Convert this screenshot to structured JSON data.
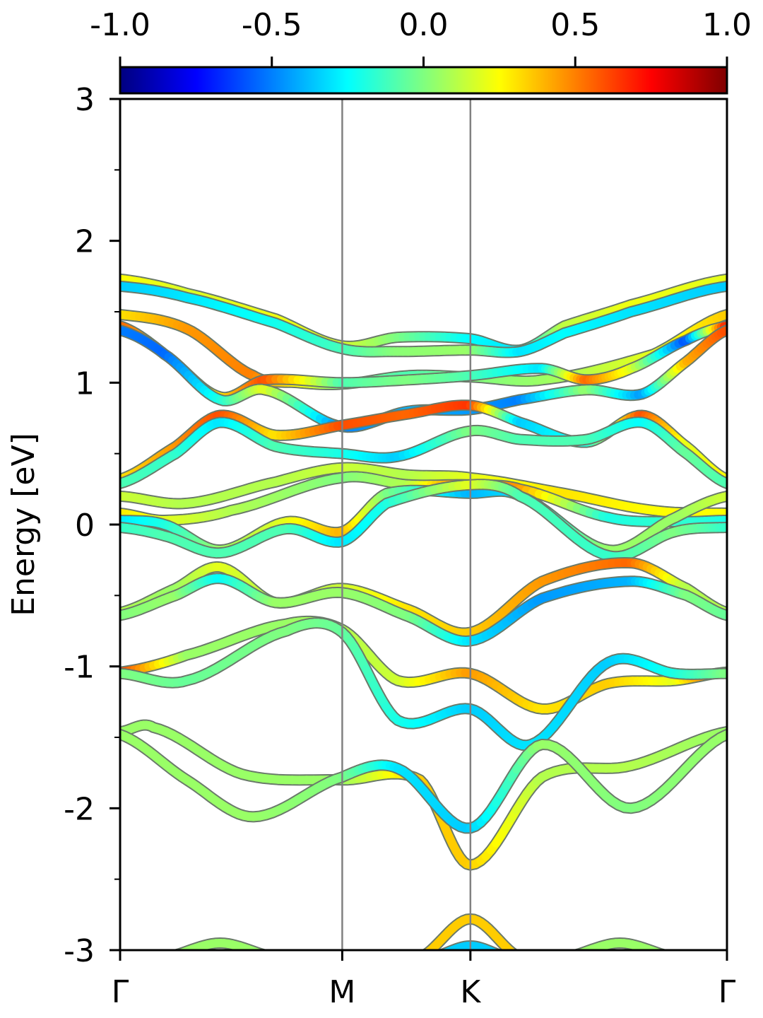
{
  "chart_data": {
    "type": "line",
    "title": "",
    "xlabel": "",
    "ylabel": "Energy [eV]",
    "ylim": [
      -3,
      3
    ],
    "y_ticks": [
      {
        "value": 3,
        "label": "3"
      },
      {
        "value": 2,
        "label": "2"
      },
      {
        "value": 1,
        "label": "1"
      },
      {
        "value": 0,
        "label": "0"
      },
      {
        "value": -1,
        "label": "-1"
      },
      {
        "value": -2,
        "label": "-2"
      },
      {
        "value": -3,
        "label": "-3"
      }
    ],
    "y_minor_ticks": [
      2.5,
      1.5,
      0.5,
      -0.5,
      -1.5,
      -2.5
    ],
    "x_ticks": [
      {
        "position": 0.0,
        "label": "Γ"
      },
      {
        "position": 1.0,
        "label": "M"
      },
      {
        "position": 1.577,
        "label": "K"
      },
      {
        "position": 2.732,
        "label": "Γ"
      }
    ],
    "xlim": [
      0,
      2.732
    ],
    "grid": false,
    "colorbar": {
      "colormap": "jet",
      "range": [
        -1.0,
        1.0
      ],
      "ticks": [
        {
          "value": -1.0,
          "label": "-1.0"
        },
        {
          "value": -0.5,
          "label": "-0.5"
        },
        {
          "value": 0.0,
          "label": "0.0"
        },
        {
          "value": 0.5,
          "label": "0.5"
        },
        {
          "value": 1.0,
          "label": "1.0"
        }
      ],
      "placement": "top"
    },
    "colors": {
      "vline": "#808080",
      "band_outline": "#6a7a6a",
      "axis": "#000000"
    },
    "bands": [
      {
        "points": [
          [
            0,
            1.73,
            0.25
          ],
          [
            0.3,
            1.63,
            0.18
          ],
          [
            0.7,
            1.45,
            0.22
          ],
          [
            1.0,
            1.26,
            0.18
          ],
          [
            1.25,
            1.32,
            0.0
          ],
          [
            1.577,
            1.31,
            -0.25
          ],
          [
            1.8,
            1.23,
            -0.3
          ],
          [
            2.0,
            1.4,
            0.12
          ],
          [
            2.3,
            1.55,
            0.22
          ],
          [
            2.732,
            1.73,
            0.2
          ]
        ]
      },
      {
        "points": [
          [
            0,
            1.68,
            -0.35
          ],
          [
            0.3,
            1.6,
            -0.3
          ],
          [
            0.7,
            1.42,
            -0.22
          ],
          [
            1.0,
            1.24,
            -0.12
          ],
          [
            1.25,
            1.22,
            0.02
          ],
          [
            1.577,
            1.23,
            0.05
          ],
          [
            1.8,
            1.22,
            -0.3
          ],
          [
            2.0,
            1.35,
            -0.25
          ],
          [
            2.3,
            1.5,
            -0.3
          ],
          [
            2.732,
            1.68,
            -0.35
          ]
        ]
      },
      {
        "points": [
          [
            0,
            1.48,
            0.3
          ],
          [
            0.3,
            1.38,
            0.45
          ],
          [
            0.6,
            1.05,
            0.5
          ],
          [
            0.8,
            1.0,
            0.25
          ],
          [
            1.0,
            0.99,
            0.0
          ],
          [
            1.3,
            1.05,
            -0.1
          ],
          [
            1.577,
            1.04,
            0.0
          ],
          [
            1.9,
            1.02,
            0.05
          ],
          [
            2.4,
            1.2,
            0.2
          ],
          [
            2.732,
            1.48,
            0.35
          ]
        ]
      },
      {
        "points": [
          [
            0,
            1.4,
            0.55
          ],
          [
            0.2,
            1.2,
            0.35
          ],
          [
            0.45,
            0.9,
            0.3
          ],
          [
            0.65,
            1.02,
            0.6
          ],
          [
            1.0,
            1.0,
            -0.1
          ],
          [
            1.3,
            1.02,
            0.0
          ],
          [
            1.577,
            1.05,
            -0.1
          ],
          [
            1.9,
            1.1,
            -0.3
          ],
          [
            2.1,
            1.02,
            0.55
          ],
          [
            2.3,
            1.1,
            0.2
          ],
          [
            2.55,
            1.3,
            -0.6
          ],
          [
            2.732,
            1.4,
            0.7
          ]
        ]
      },
      {
        "points": [
          [
            0,
            1.37,
            -0.5
          ],
          [
            0.2,
            1.2,
            -0.55
          ],
          [
            0.45,
            0.88,
            -0.2
          ],
          [
            0.65,
            0.95,
            0.2
          ],
          [
            1.0,
            0.69,
            -0.5
          ],
          [
            1.3,
            0.8,
            -0.4
          ],
          [
            1.577,
            0.81,
            -0.45
          ],
          [
            1.8,
            0.88,
            -0.5
          ],
          [
            2.1,
            0.95,
            0.05
          ],
          [
            2.35,
            0.92,
            -0.45
          ],
          [
            2.55,
            1.15,
            0.4
          ],
          [
            2.732,
            1.37,
            0.6
          ]
        ]
      },
      {
        "points": [
          [
            0,
            0.32,
            0.3
          ],
          [
            0.25,
            0.55,
            0.45
          ],
          [
            0.45,
            0.77,
            0.6
          ],
          [
            0.7,
            0.63,
            0.3
          ],
          [
            1.0,
            0.7,
            0.6
          ],
          [
            1.3,
            0.78,
            0.55
          ],
          [
            1.577,
            0.84,
            0.65
          ],
          [
            1.8,
            0.72,
            -0.35
          ],
          [
            2.1,
            0.58,
            -0.2
          ],
          [
            2.35,
            0.77,
            0.6
          ],
          [
            2.55,
            0.55,
            0.2
          ],
          [
            2.732,
            0.32,
            0.25
          ]
        ]
      },
      {
        "points": [
          [
            0,
            0.29,
            -0.1
          ],
          [
            0.25,
            0.5,
            -0.15
          ],
          [
            0.45,
            0.72,
            -0.3
          ],
          [
            0.7,
            0.55,
            -0.1
          ],
          [
            1.0,
            0.5,
            -0.2
          ],
          [
            1.25,
            0.48,
            -0.35
          ],
          [
            1.577,
            0.66,
            0.0
          ],
          [
            1.8,
            0.6,
            -0.1
          ],
          [
            2.1,
            0.6,
            -0.1
          ],
          [
            2.35,
            0.72,
            -0.25
          ],
          [
            2.55,
            0.5,
            -0.05
          ],
          [
            2.732,
            0.29,
            -0.1
          ]
        ]
      },
      {
        "points": [
          [
            0,
            0.2,
            0.15
          ],
          [
            0.3,
            0.15,
            0.1
          ],
          [
            0.7,
            0.3,
            0.1
          ],
          [
            1.0,
            0.4,
            0.15
          ],
          [
            1.3,
            0.35,
            0.1
          ],
          [
            1.577,
            0.33,
            0.2
          ],
          [
            2.0,
            0.22,
            0.3
          ],
          [
            2.4,
            0.1,
            0.25
          ],
          [
            2.732,
            0.08,
            0.25
          ]
        ]
      },
      {
        "points": [
          [
            0,
            0.08,
            0.3
          ],
          [
            0.2,
            0.03,
            0.2
          ],
          [
            0.5,
            0.1,
            0.1
          ],
          [
            1.0,
            0.33,
            0.0
          ],
          [
            1.3,
            0.28,
            0.1
          ],
          [
            1.577,
            0.28,
            0.6
          ],
          [
            1.8,
            0.25,
            0.45
          ],
          [
            2.2,
            0.05,
            -0.2
          ],
          [
            2.5,
            0.02,
            -0.15
          ],
          [
            2.732,
            0.03,
            -0.2
          ]
        ]
      },
      {
        "points": [
          [
            0,
            0.03,
            -0.3
          ],
          [
            0.2,
            0.0,
            -0.2
          ],
          [
            0.45,
            -0.18,
            0.05
          ],
          [
            0.75,
            0.02,
            0.2
          ],
          [
            1.0,
            -0.05,
            0.4
          ],
          [
            1.2,
            0.22,
            0.0
          ],
          [
            1.577,
            0.22,
            -0.4
          ],
          [
            1.8,
            0.2,
            -0.3
          ],
          [
            2.2,
            -0.18,
            0.05
          ],
          [
            2.5,
            0.05,
            0.05
          ],
          [
            2.732,
            0.2,
            0.15
          ]
        ]
      },
      {
        "points": [
          [
            0,
            -0.02,
            -0.15
          ],
          [
            0.2,
            -0.08,
            -0.1
          ],
          [
            0.45,
            -0.2,
            -0.1
          ],
          [
            0.75,
            -0.03,
            -0.1
          ],
          [
            1.0,
            -0.12,
            -0.3
          ],
          [
            1.2,
            0.15,
            -0.2
          ],
          [
            1.577,
            0.28,
            0.2
          ],
          [
            1.8,
            0.2,
            -0.1
          ],
          [
            2.2,
            -0.22,
            -0.15
          ],
          [
            2.5,
            -0.05,
            0.0
          ],
          [
            2.732,
            -0.02,
            -0.15
          ]
        ]
      },
      {
        "points": [
          [
            0,
            -0.62,
            0.1
          ],
          [
            0.25,
            -0.45,
            0.05
          ],
          [
            0.45,
            -0.3,
            0.2
          ],
          [
            0.7,
            -0.55,
            0.1
          ],
          [
            1.0,
            -0.45,
            0.15
          ],
          [
            1.3,
            -0.6,
            0.3
          ],
          [
            1.577,
            -0.76,
            0.35
          ],
          [
            1.9,
            -0.4,
            0.45
          ],
          [
            2.3,
            -0.27,
            0.55
          ],
          [
            2.55,
            -0.45,
            0.1
          ],
          [
            2.732,
            -0.62,
            0.1
          ]
        ]
      },
      {
        "points": [
          [
            0,
            -0.64,
            0.0
          ],
          [
            0.25,
            -0.5,
            0.05
          ],
          [
            0.45,
            -0.38,
            -0.25
          ],
          [
            0.7,
            -0.55,
            0.05
          ],
          [
            1.0,
            -0.48,
            0.05
          ],
          [
            1.3,
            -0.65,
            0.0
          ],
          [
            1.577,
            -0.82,
            -0.3
          ],
          [
            1.9,
            -0.52,
            -0.45
          ],
          [
            2.3,
            -0.4,
            -0.4
          ],
          [
            2.55,
            -0.5,
            0.0
          ],
          [
            2.732,
            -0.64,
            -0.05
          ]
        ]
      },
      {
        "points": [
          [
            0,
            -1.04,
            0.65
          ],
          [
            0.3,
            -0.92,
            0.05
          ],
          [
            0.75,
            -0.7,
            0.05
          ],
          [
            1.0,
            -0.74,
            0.1
          ],
          [
            1.25,
            -1.1,
            0.15
          ],
          [
            1.577,
            -1.05,
            0.45
          ],
          [
            1.9,
            -1.3,
            0.3
          ],
          [
            2.2,
            -1.12,
            0.35
          ],
          [
            2.5,
            -1.1,
            0.2
          ],
          [
            2.732,
            -1.04,
            0.7
          ]
        ]
      },
      {
        "points": [
          [
            0,
            -1.05,
            0.0
          ],
          [
            0.3,
            -1.1,
            -0.05
          ],
          [
            0.75,
            -0.75,
            0.0
          ],
          [
            1.0,
            -0.76,
            -0.05
          ],
          [
            1.25,
            -1.38,
            -0.2
          ],
          [
            1.577,
            -1.3,
            -0.35
          ],
          [
            1.85,
            -1.55,
            -0.3
          ],
          [
            2.2,
            -0.97,
            -0.35
          ],
          [
            2.5,
            -1.05,
            -0.2
          ],
          [
            2.732,
            -1.05,
            0.0
          ]
        ]
      },
      {
        "points": [
          [
            0,
            -1.46,
            0.05
          ],
          [
            0.15,
            -1.43,
            0.05
          ],
          [
            0.55,
            -1.76,
            0.05
          ],
          [
            1.0,
            -1.8,
            0.05
          ],
          [
            1.35,
            -1.8,
            0.35
          ],
          [
            1.577,
            -2.4,
            0.35
          ],
          [
            1.9,
            -1.78,
            0.1
          ],
          [
            2.3,
            -1.7,
            0.1
          ],
          [
            2.732,
            -1.46,
            0.05
          ]
        ]
      },
      {
        "points": [
          [
            0,
            -1.48,
            0.05
          ],
          [
            0.3,
            -1.8,
            0.05
          ],
          [
            0.6,
            -2.06,
            0.05
          ],
          [
            1.0,
            -1.78,
            0.0
          ],
          [
            1.25,
            -1.72,
            -0.3
          ],
          [
            1.577,
            -2.14,
            -0.35
          ],
          [
            1.9,
            -1.55,
            0.05
          ],
          [
            2.3,
            -2.0,
            0.0
          ],
          [
            2.732,
            -1.48,
            0.05
          ]
        ]
      },
      {
        "points": [
          [
            0.2,
            -3.05,
            0.05
          ],
          [
            0.45,
            -2.95,
            0.05
          ],
          [
            0.7,
            -3.05,
            0.05
          ]
        ]
      },
      {
        "points": [
          [
            1.35,
            -3.05,
            0.35
          ],
          [
            1.577,
            -2.78,
            0.35
          ],
          [
            1.8,
            -3.05,
            0.35
          ]
        ]
      },
      {
        "points": [
          [
            1.4,
            -3.05,
            -0.35
          ],
          [
            1.577,
            -2.97,
            -0.35
          ],
          [
            1.75,
            -3.05,
            -0.35
          ]
        ]
      },
      {
        "points": [
          [
            2.0,
            -3.05,
            0.05
          ],
          [
            2.25,
            -2.95,
            0.05
          ],
          [
            2.5,
            -3.05,
            0.05
          ]
        ]
      }
    ]
  }
}
